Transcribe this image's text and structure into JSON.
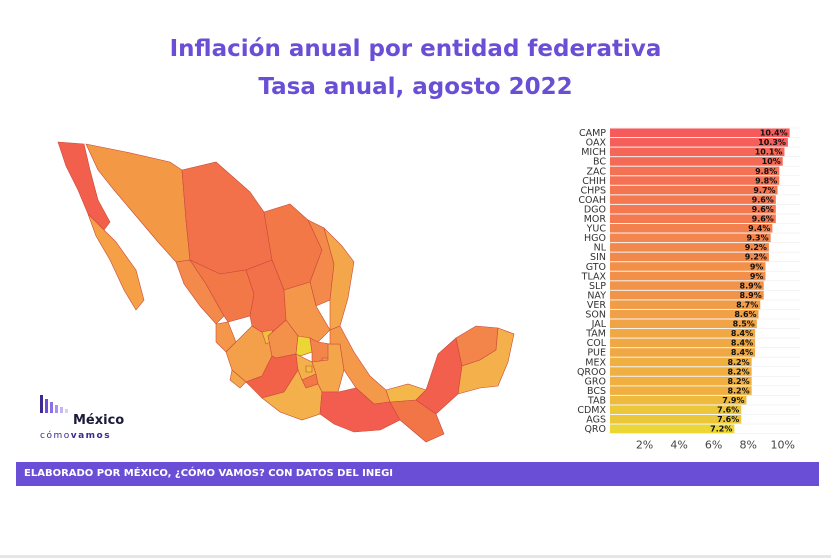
{
  "header": {
    "title": "Inflación anual por entidad federativa",
    "subtitle": "Tasa anual, agosto 2022"
  },
  "logo": {
    "line1": "México",
    "line2_a": "cómo",
    "line2_b": "vamos"
  },
  "footer": {
    "text": "ELABORADO POR MÉXICO, ¿CÓMO VAMOS? CON DATOS DEL INEGI"
  },
  "colors": {
    "accent": "#6a4fd6",
    "high": "#f46060",
    "low": "#ecd636"
  },
  "chart_data": {
    "type": "bar",
    "orientation": "horizontal",
    "categories": [
      "CAMP",
      "OAX",
      "MICH",
      "BC",
      "ZAC",
      "CHIH",
      "CHPS",
      "COAH",
      "DGO",
      "MOR",
      "YUC",
      "HGO",
      "NL",
      "SIN",
      "GTO",
      "TLAX",
      "SLP",
      "NAY",
      "VER",
      "SON",
      "JAL",
      "TAM",
      "COL",
      "PUE",
      "MEX",
      "QROO",
      "GRO",
      "BCS",
      "TAB",
      "CDMX",
      "AGS",
      "QRO"
    ],
    "values": [
      10.4,
      10.3,
      10.1,
      10,
      9.8,
      9.8,
      9.7,
      9.6,
      9.6,
      9.6,
      9.4,
      9.3,
      9.2,
      9.2,
      9,
      9,
      8.9,
      8.9,
      8.7,
      8.6,
      8.5,
      8.4,
      8.4,
      8.4,
      8.2,
      8.2,
      8.2,
      8.2,
      7.9,
      7.6,
      7.6,
      7.2
    ],
    "value_labels": [
      "10.4%",
      "10.3%",
      "10.1%",
      "10%",
      "9.8%",
      "9.8%",
      "9.7%",
      "9.6%",
      "9.6%",
      "9.6%",
      "9.4%",
      "9.3%",
      "9.2%",
      "9.2%",
      "9%",
      "9%",
      "8.9%",
      "8.9%",
      "8.7%",
      "8.6%",
      "8.5%",
      "8.4%",
      "8.4%",
      "8.4%",
      "8.2%",
      "8.2%",
      "8.2%",
      "8.2%",
      "7.9%",
      "7.6%",
      "7.6%",
      "7.2%"
    ],
    "x_ticks": [
      2,
      4,
      6,
      8,
      10
    ],
    "x_tick_labels": [
      "2%",
      "4%",
      "6%",
      "8%",
      "10%"
    ],
    "xlim": [
      0,
      11
    ],
    "grid": true,
    "color_scale": "value-based, yellow (low) to red (high)"
  }
}
